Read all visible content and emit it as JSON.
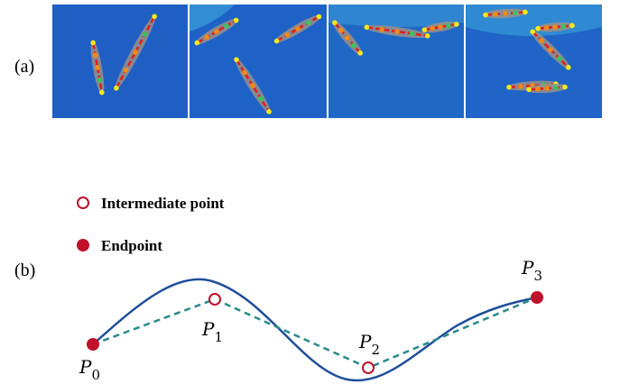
{
  "figure": {
    "panel_a": {
      "label": "(a)"
    },
    "panel_b": {
      "label": "(b)",
      "legend": [
        {
          "label": "Intermediate point"
        },
        {
          "label": "Endpoint"
        }
      ],
      "points": [
        {
          "symbol": "P",
          "index": "0"
        },
        {
          "symbol": "P",
          "index": "1"
        },
        {
          "symbol": "P",
          "index": "2"
        },
        {
          "symbol": "P",
          "index": "3"
        }
      ]
    }
  }
}
